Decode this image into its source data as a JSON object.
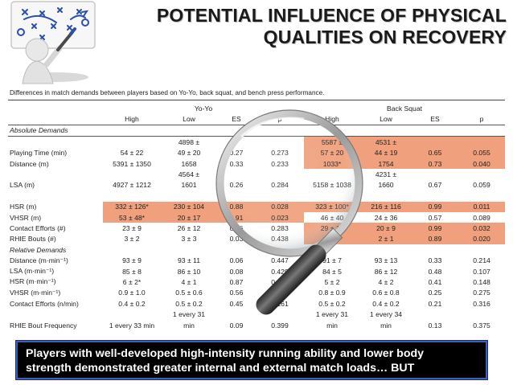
{
  "title_line1": "POTENTIAL INFLUENCE OF PHYSICAL",
  "title_line2": "QUALITIES ON RECOVERY",
  "caption": "Differences in match demands between players based on Yo-Yo, back squat, and bench press performance.",
  "groups": {
    "yoyo": "Yo-Yo",
    "squat": "Back Squat"
  },
  "headers": [
    "High",
    "Low",
    "ES",
    "p",
    "High",
    "Low",
    "ES",
    "p"
  ],
  "sections": {
    "absolute": "Absolute Demands",
    "relative": "Relative Demands"
  },
  "rows": [
    {
      "label": "",
      "cells": [
        "",
        "4898 ±",
        "",
        "",
        "5587 ±",
        "4531 ±",
        "",
        ""
      ],
      "hl": [
        4,
        5,
        6,
        7
      ]
    },
    {
      "label": "Playing Time (min)",
      "cells": [
        "54 ± 22",
        "49 ± 20",
        "0.27",
        "0.273",
        "57 ± 20",
        "44 ± 19",
        "0.65",
        "0.055"
      ],
      "hl": [
        4,
        5,
        6,
        7
      ]
    },
    {
      "label": "Distance (m)",
      "cells": [
        "5391 ± 1350",
        "1658",
        "0.33",
        "0.233",
        "1033*",
        "1754",
        "0.73",
        "0.040"
      ],
      "hl": [
        4,
        5,
        6,
        7
      ]
    },
    {
      "label": "",
      "cells": [
        "",
        "4564 ±",
        "",
        "",
        "",
        "4231 ±",
        "",
        ""
      ],
      "hl": []
    },
    {
      "label": "LSA (m)",
      "cells": [
        "4927 ± 1212",
        "1601",
        "0.26",
        "0.284",
        "5158 ± 1038",
        "1660",
        "0.67",
        "0.059"
      ],
      "hl": []
    },
    {
      "label": "",
      "cells": [
        "",
        "",
        "",
        "",
        "",
        "",
        "",
        ""
      ],
      "hl": []
    },
    {
      "label": "HSR (m)",
      "cells": [
        "332 ± 126*",
        "230 ± 104",
        "0.88",
        "0.028",
        "323 ± 100*",
        "216 ± 116",
        "0.99",
        "0.011"
      ],
      "hl": [
        0,
        1,
        2,
        3,
        4,
        5,
        6,
        7
      ]
    },
    {
      "label": "VHSR (m)",
      "cells": [
        "53 ± 48*",
        "20 ± 17",
        "0.91",
        "0.023",
        "46 ± 40",
        "24 ± 36",
        "0.57",
        "0.089"
      ],
      "hl": [
        0,
        1,
        2,
        3
      ]
    },
    {
      "label": "Contact Efforts (#)",
      "cells": [
        "23 ± 9",
        "26 ± 12",
        "0.26",
        "0.283",
        "29 ± 10",
        "20 ± 9",
        "0.99",
        "0.032"
      ],
      "hl": [
        4,
        5,
        6,
        7
      ]
    },
    {
      "label": "RHIE Bouts (#)",
      "cells": [
        "3 ± 2",
        "3 ± 3",
        "0.03",
        "0.438",
        "4 ± 3*",
        "2 ± 1",
        "0.89",
        "0.020"
      ],
      "hl": [
        4,
        5,
        6,
        7
      ]
    },
    {
      "label": "Distance (m·min⁻¹)",
      "cells": [
        "93 ± 9",
        "93 ± 11",
        "0.06",
        "0.447",
        "91 ± 7",
        "93 ± 13",
        "0.33",
        "0.214"
      ],
      "hl": []
    },
    {
      "label": "LSA (m·min⁻¹)",
      "cells": [
        "85 ± 8",
        "86 ± 10",
        "0.08",
        "0.429",
        "84 ± 5",
        "86 ± 12",
        "0.48",
        "0.107"
      ],
      "hl": []
    },
    {
      "label": "HSR (m·min⁻¹)",
      "cells": [
        "6 ± 2*",
        "4 ± 1",
        "0.87",
        "0.030",
        "5 ± 2",
        "4 ± 2",
        "0.41",
        "0.148"
      ],
      "hl": []
    },
    {
      "label": "VHSR (m·min⁻¹)",
      "cells": [
        "0.9 ± 1.0",
        "0.5 ± 0.6",
        "0.56",
        "0.103",
        "0.8 ± 0.9",
        "0.6 ± 0.8",
        "0.25",
        "0.275"
      ],
      "hl": []
    },
    {
      "label": "Contact Efforts (n/min)",
      "cells": [
        "0.4 ± 0.2",
        "0.5 ± 0.2",
        "0.45",
        "0.161",
        "0.5 ± 0.2",
        "0.4 ± 0.2",
        "0.21",
        "0.316"
      ],
      "hl": []
    },
    {
      "label": "",
      "cells": [
        "",
        "1 every 31",
        "",
        "",
        "1 every 31",
        "1 every 34",
        "",
        ""
      ],
      "hl": []
    },
    {
      "label": "RHIE Bout Frequency",
      "cells": [
        "1 every 33 min",
        "min",
        "0.09",
        "0.399",
        "min",
        "min",
        "0.13",
        "0.375"
      ],
      "hl": []
    }
  ],
  "banner_line1": "Players with well-developed high-intensity running ability and lower body",
  "banner_line2": "strength demonstrated greater internal and external match loads… BUT"
}
